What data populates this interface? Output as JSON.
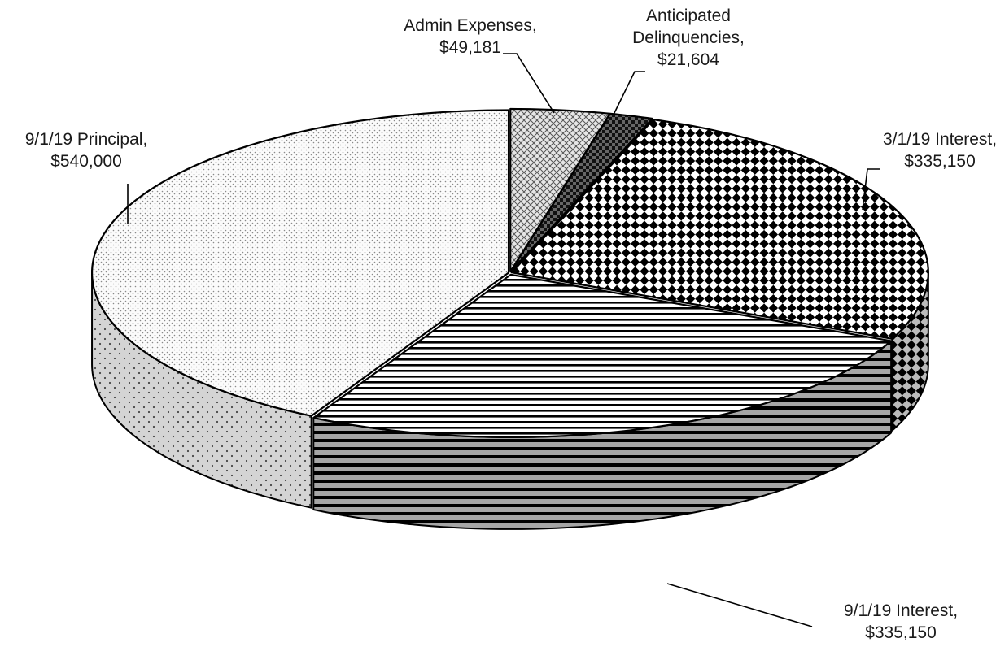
{
  "chart_data": {
    "type": "pie",
    "style": "3d-exploded-patterned",
    "title": "",
    "slices": [
      {
        "name": "Admin Expenses",
        "value": 49181,
        "label_lines": [
          "Admin Expenses,",
          "$49,181"
        ],
        "pattern": "crosshatch"
      },
      {
        "name": "Anticipated Delinquencies",
        "value": 21604,
        "label_lines": [
          "Anticipated",
          "Delinquencies,",
          "$21,604"
        ],
        "pattern": "dark-checker"
      },
      {
        "name": "3/1/19 Interest",
        "value": 335150,
        "label_lines": [
          "3/1/19 Interest,",
          "$335,150"
        ],
        "pattern": "diamond-checker"
      },
      {
        "name": "9/1/19 Interest",
        "value": 335150,
        "label_lines": [
          "9/1/19 Interest,",
          "$335,150"
        ],
        "pattern": "horizontal-stripes"
      },
      {
        "name": "9/1/19 Principal",
        "value": 540000,
        "label_lines": [
          "9/1/19 Principal,",
          "$540,000"
        ],
        "pattern": "light-dots"
      }
    ],
    "start_angle": "top, clockwise"
  }
}
